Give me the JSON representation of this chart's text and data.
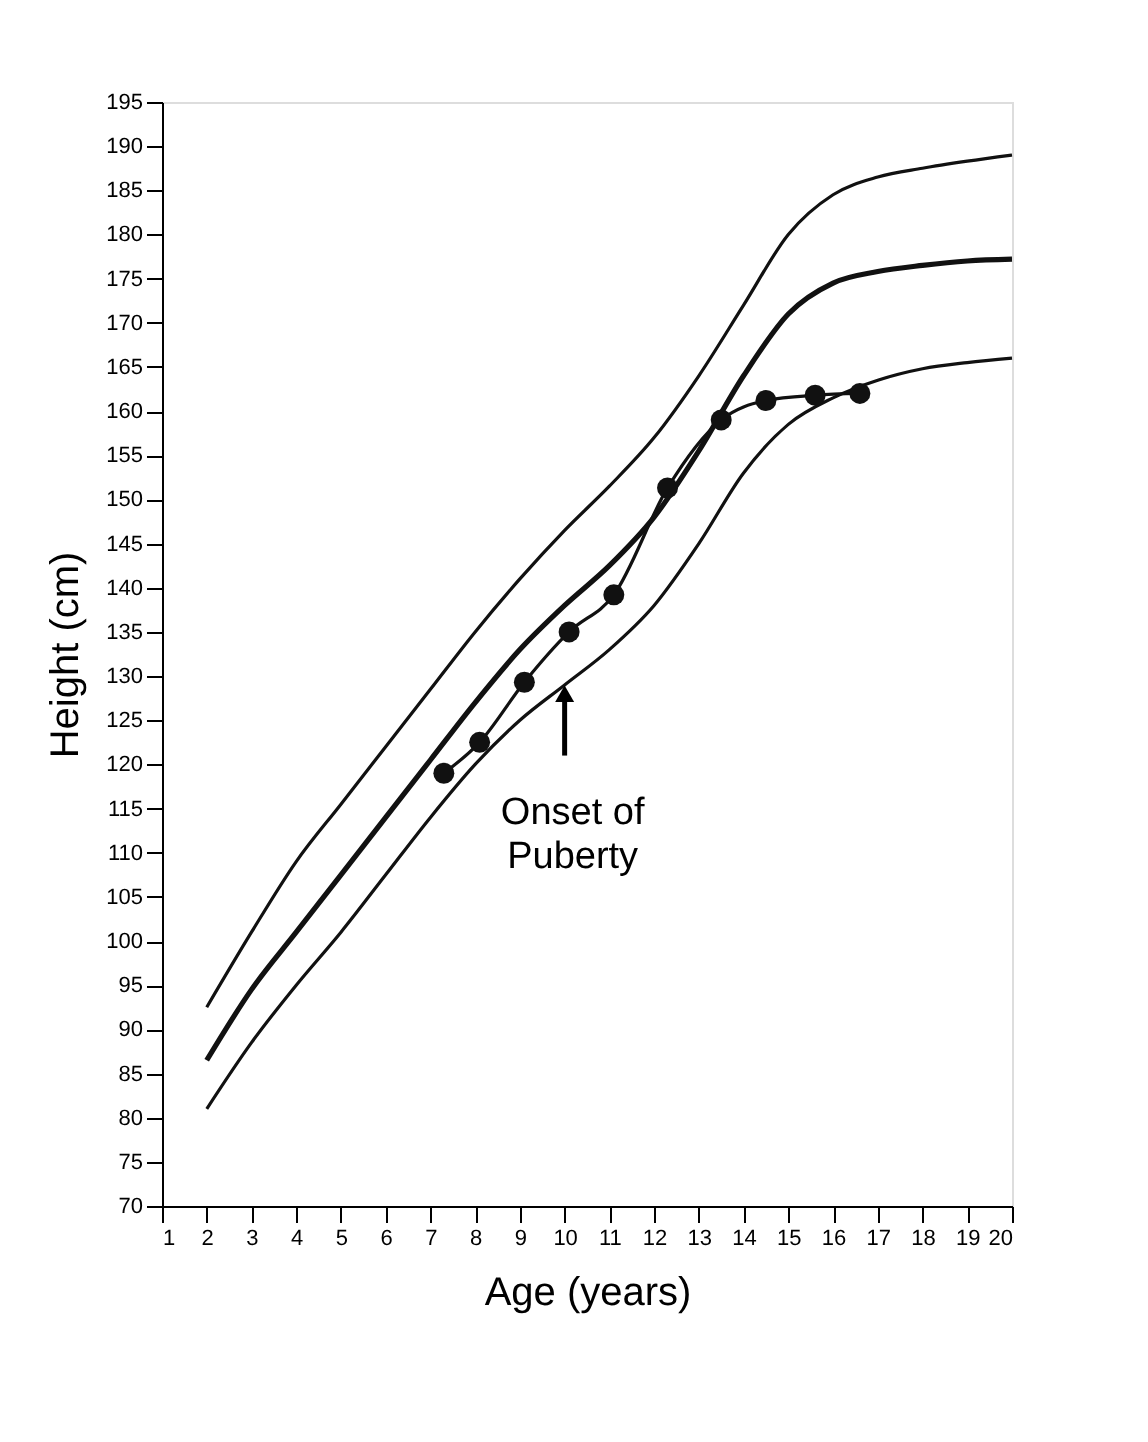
{
  "chart_data": {
    "type": "line",
    "xlabel": "Age (years)",
    "ylabel": "Height (cm)",
    "xlim": [
      1,
      20
    ],
    "xticks": [
      1,
      2,
      3,
      4,
      5,
      6,
      7,
      8,
      9,
      10,
      11,
      12,
      13,
      14,
      15,
      16,
      17,
      18,
      19,
      20
    ],
    "ylim": [
      70,
      195
    ],
    "yticks": [
      70,
      75,
      80,
      85,
      90,
      95,
      100,
      105,
      110,
      115,
      120,
      125,
      130,
      135,
      140,
      145,
      150,
      155,
      160,
      165,
      170,
      175,
      180,
      185,
      190,
      195
    ],
    "grid": false,
    "series": [
      {
        "color": "#111111",
        "marker": "none",
        "x": [
          2,
          3,
          4,
          5,
          6,
          7,
          8,
          9,
          10,
          11,
          12,
          13,
          14,
          15,
          16,
          17,
          18,
          19,
          20
        ],
        "values": [
          92.5,
          101,
          109,
          115.5,
          122,
          128.5,
          135,
          141,
          146.5,
          151.5,
          157,
          164,
          172,
          180,
          184.5,
          186.5,
          187.5,
          188.3,
          189
        ]
      },
      {
        "color": "#111111",
        "marker": "none",
        "x": [
          2,
          3,
          4,
          5,
          6,
          7,
          8,
          9,
          10,
          11,
          12,
          13,
          14,
          15,
          16,
          17,
          18,
          19,
          20
        ],
        "values": [
          86.5,
          94.5,
          101,
          107.5,
          114,
          120.5,
          127,
          133,
          138,
          142.5,
          148,
          155.5,
          164,
          171,
          174.5,
          175.8,
          176.5,
          177,
          177.2
        ]
      },
      {
        "color": "#111111",
        "marker": "none",
        "x": [
          2,
          3,
          4,
          5,
          6,
          7,
          8,
          9,
          10,
          11,
          12,
          13,
          14,
          15,
          16,
          17,
          18,
          19,
          20
        ],
        "values": [
          81,
          88.5,
          95,
          101,
          107.5,
          114,
          120,
          125,
          129,
          133,
          138,
          145,
          153,
          158.5,
          161.5,
          163.5,
          164.8,
          165.5,
          166
        ]
      },
      {
        "color": "#111111",
        "marker": "circle",
        "x": [
          7.3,
          8.1,
          9.1,
          10.1,
          11.1,
          12.3,
          13.5,
          14.5,
          15.6,
          16.6
        ],
        "values": [
          119,
          122.5,
          129.3,
          135,
          139.2,
          151.3,
          159,
          161.2,
          161.8,
          162
        ]
      }
    ],
    "annotations": [
      {
        "text": "Onset of\nPuberty",
        "x": 10,
        "y": 128
      }
    ]
  }
}
